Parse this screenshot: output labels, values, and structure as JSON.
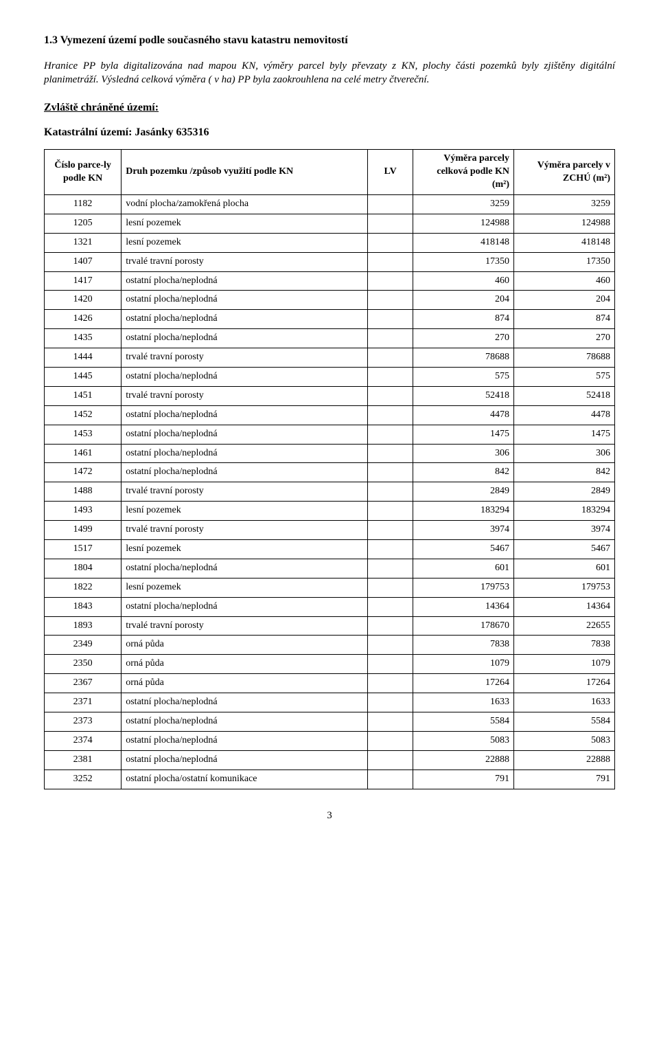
{
  "heading": "1.3 Vymezení území podle současného stavu katastru nemovitostí",
  "intro": "Hranice PP byla digitalizována nad mapou KN, výměry parcel byly převzaty z KN, plochy části pozemků byly zjištěny digitální planimetráží. Výsledná celková výměra ( v ha) PP byla zaokrouhlena na celé metry čtvereční.",
  "zone_label": "Zvláště chráněné území:",
  "cadastre_label": "Katastrální území: Jasánky 635316",
  "table": {
    "columns": [
      "Číslo parce-ly podle KN",
      "Druh pozemku /způsob využití podle KN",
      "LV",
      "Výměra parcely celková podle KN (m²)",
      "Výměra parcely v ZCHÚ (m²)"
    ],
    "col_widths": [
      "13%",
      "45%",
      "7%",
      "17.5%",
      "17.5%"
    ],
    "border_color": "#000000",
    "header_fontsize": 14,
    "cell_fontsize": 14,
    "rows": [
      [
        "1182",
        "vodní plocha/zamokřená plocha",
        "",
        "3259",
        "3259"
      ],
      [
        "1205",
        "lesní pozemek",
        "",
        "124988",
        "124988"
      ],
      [
        "1321",
        "lesní pozemek",
        "",
        "418148",
        "418148"
      ],
      [
        "1407",
        "trvalé travní porosty",
        "",
        "17350",
        "17350"
      ],
      [
        "1417",
        "ostatní plocha/neplodná",
        "",
        "460",
        "460"
      ],
      [
        "1420",
        "ostatní plocha/neplodná",
        "",
        "204",
        "204"
      ],
      [
        "1426",
        "ostatní plocha/neplodná",
        "",
        "874",
        "874"
      ],
      [
        "1435",
        "ostatní plocha/neplodná",
        "",
        "270",
        "270"
      ],
      [
        "1444",
        "trvalé travní porosty",
        "",
        "78688",
        "78688"
      ],
      [
        "1445",
        "ostatní plocha/neplodná",
        "",
        "575",
        "575"
      ],
      [
        "1451",
        "trvalé travní porosty",
        "",
        "52418",
        "52418"
      ],
      [
        "1452",
        "ostatní plocha/neplodná",
        "",
        "4478",
        "4478"
      ],
      [
        "1453",
        "ostatní plocha/neplodná",
        "",
        "1475",
        "1475"
      ],
      [
        "1461",
        "ostatní plocha/neplodná",
        "",
        "306",
        "306"
      ],
      [
        "1472",
        "ostatní plocha/neplodná",
        "",
        "842",
        "842"
      ],
      [
        "1488",
        "trvalé travní porosty",
        "",
        "2849",
        "2849"
      ],
      [
        "1493",
        "lesní pozemek",
        "",
        "183294",
        "183294"
      ],
      [
        "1499",
        "trvalé travní porosty",
        "",
        "3974",
        "3974"
      ],
      [
        "1517",
        "lesní pozemek",
        "",
        "5467",
        "5467"
      ],
      [
        "1804",
        "ostatní plocha/neplodná",
        "",
        "601",
        "601"
      ],
      [
        "1822",
        "lesní pozemek",
        "",
        "179753",
        "179753"
      ],
      [
        "1843",
        "ostatní plocha/neplodná",
        "",
        "14364",
        "14364"
      ],
      [
        "1893",
        "trvalé travní porosty",
        "",
        "178670",
        "22655"
      ],
      [
        "2349",
        "orná půda",
        "",
        "7838",
        "7838"
      ],
      [
        "2350",
        "orná půda",
        "",
        "1079",
        "1079"
      ],
      [
        "2367",
        "orná půda",
        "",
        "17264",
        "17264"
      ],
      [
        "2371",
        "ostatní plocha/neplodná",
        "",
        "1633",
        "1633"
      ],
      [
        "2373",
        "ostatní plocha/neplodná",
        "",
        "5584",
        "5584"
      ],
      [
        "2374",
        "ostatní plocha/neplodná",
        "",
        "5083",
        "5083"
      ],
      [
        "2381",
        "ostatní plocha/neplodná",
        "",
        "22888",
        "22888"
      ],
      [
        "3252",
        "ostatní plocha/ostatní komunikace",
        "",
        "791",
        "791"
      ]
    ]
  },
  "page_number": "3"
}
